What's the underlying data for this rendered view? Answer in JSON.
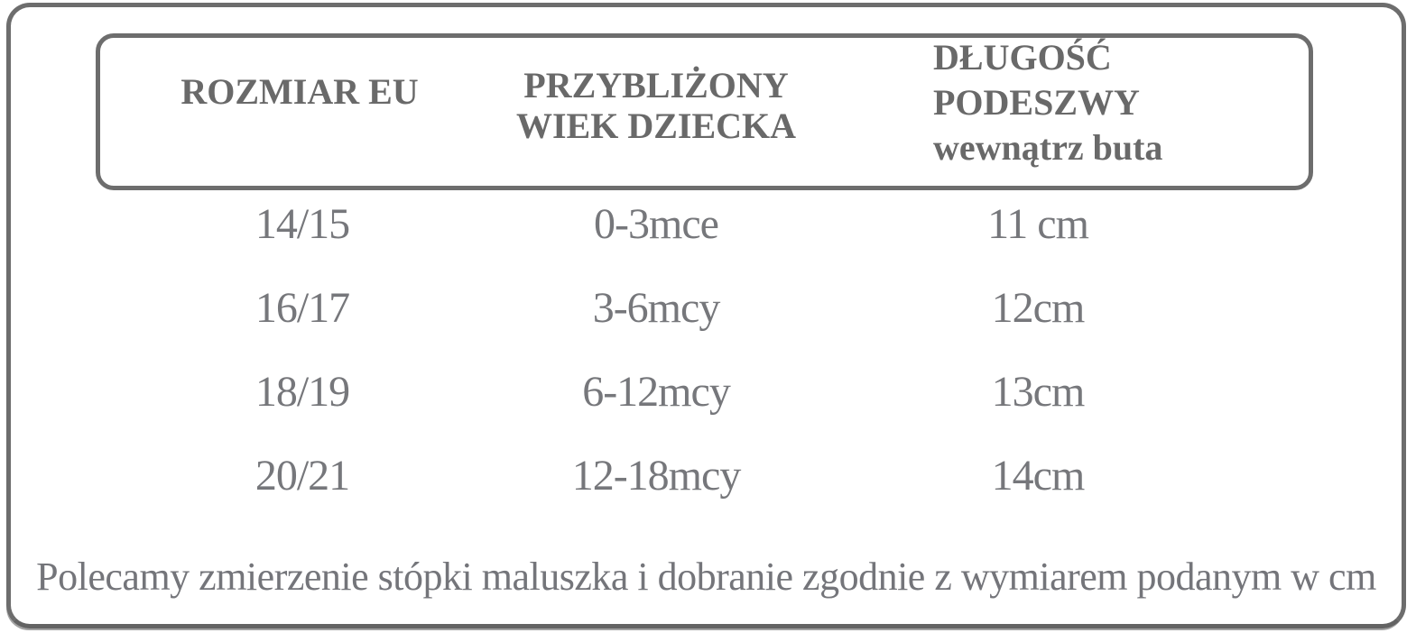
{
  "colors": {
    "border_gray": "#6d6d6d",
    "header_text_gray": "#696969",
    "value_text_gray": "#76777b"
  },
  "header": {
    "col1": "ROZMIAR EU",
    "col2_line1": "PRZYBLIŻONY",
    "col2_line2": "WIEK DZIECKA",
    "col3_line1": "DŁUGOŚĆ",
    "col3_line2": "PODESZWY",
    "col3_line3": "wewnątrz buta"
  },
  "rows": [
    {
      "size": "14/15",
      "age": "0-3mce",
      "length": "11 cm"
    },
    {
      "size": "16/17",
      "age": "3-6mcy",
      "length": "12cm"
    },
    {
      "size": "18/19",
      "age": "6-12mcy",
      "length": "13cm"
    },
    {
      "size": "20/21",
      "age": "12-18mcy",
      "length": "14cm"
    }
  ],
  "footer": "Polecamy zmierzenie stópki maluszka i dobranie zgodnie z wymiarem podanym w cm",
  "chart_data": {
    "type": "table",
    "title": "Tabela rozmiarów butów dziecięcych",
    "columns": [
      "ROZMIAR EU",
      "PRZYBLIŻONY WIEK DZIECKA",
      "DŁUGOŚĆ PODESZWY wewnątrz buta"
    ],
    "rows": [
      [
        "14/15",
        "0-3mce",
        "11 cm"
      ],
      [
        "16/17",
        "3-6mcy",
        "12cm"
      ],
      [
        "18/19",
        "6-12mcy",
        "13cm"
      ],
      [
        "20/21",
        "12-18mcy",
        "14cm"
      ]
    ],
    "note": "Polecamy zmierzenie stópki maluszka i dobranie zgodnie z wymiarem podanym w cm"
  }
}
